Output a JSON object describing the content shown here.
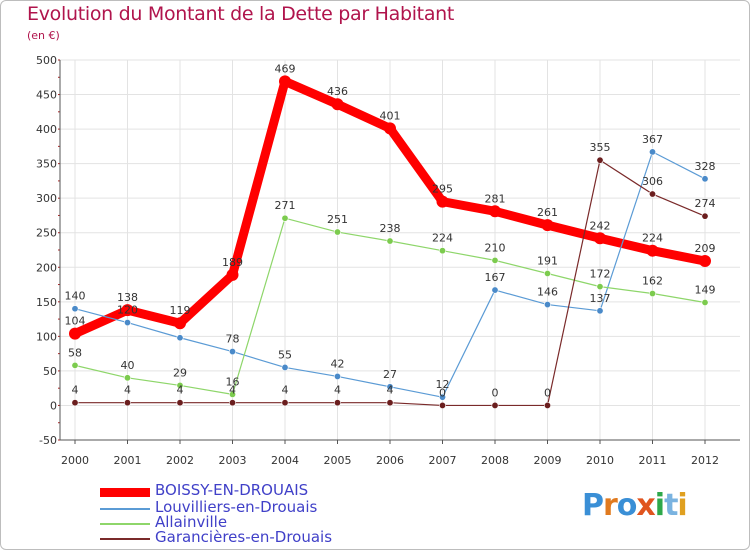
{
  "title": "Evolution du Montant de la Dette par Habitant",
  "subtitle": "(en €)",
  "logo_text": "Proxiti",
  "chart_data": {
    "type": "line",
    "title": "Evolution du Montant de la Dette par Habitant",
    "ylabel": "(en €)",
    "xlabel": "",
    "categories": [
      "2000",
      "2001",
      "2002",
      "2003",
      "2004",
      "2005",
      "2006",
      "2007",
      "2008",
      "2009",
      "2010",
      "2011",
      "2012"
    ],
    "ylim": [
      -50,
      500
    ],
    "yticks": [
      -50,
      0,
      50,
      100,
      150,
      200,
      250,
      300,
      350,
      400,
      450,
      500
    ],
    "grid": true,
    "legend_position": "bottom-left",
    "series": [
      {
        "name": "BOISSY-EN-DROUAIS",
        "color": "#ff0000",
        "values": [
          104,
          138,
          119,
          189,
          469,
          436,
          401,
          295,
          281,
          261,
          242,
          224,
          209
        ],
        "labels": [
          "104",
          "138",
          "119",
          "189",
          "469",
          "436",
          "401",
          "295",
          "281",
          "261",
          "242",
          "224",
          "209"
        ]
      },
      {
        "name": "Louvilliers-en-Drouais",
        "color": "#5b9bd5",
        "values": [
          140,
          120,
          98,
          78,
          55,
          42,
          27,
          12,
          167,
          146,
          137,
          367,
          328
        ],
        "labels": [
          "140",
          "120",
          "",
          "78",
          "55",
          "42",
          "27",
          "12",
          "167",
          "146",
          "137",
          "367",
          "328"
        ]
      },
      {
        "name": "Allainville",
        "color": "#8ed66a",
        "values": [
          58,
          40,
          29,
          16,
          271,
          251,
          238,
          224,
          210,
          191,
          172,
          162,
          149
        ],
        "labels": [
          "58",
          "40",
          "29",
          "16",
          "271",
          "251",
          "238",
          "224",
          "210",
          "191",
          "172",
          "162",
          "149"
        ]
      },
      {
        "name": "Garancières-en-Drouais",
        "color": "#7a2a2a",
        "values": [
          4,
          4,
          4,
          4,
          4,
          4,
          4,
          0,
          0,
          0,
          355,
          306,
          274
        ],
        "labels": [
          "4",
          "4",
          "4",
          "4",
          "4",
          "4",
          "4",
          "0",
          "0",
          "0",
          "355",
          "306",
          "274"
        ]
      }
    ]
  }
}
